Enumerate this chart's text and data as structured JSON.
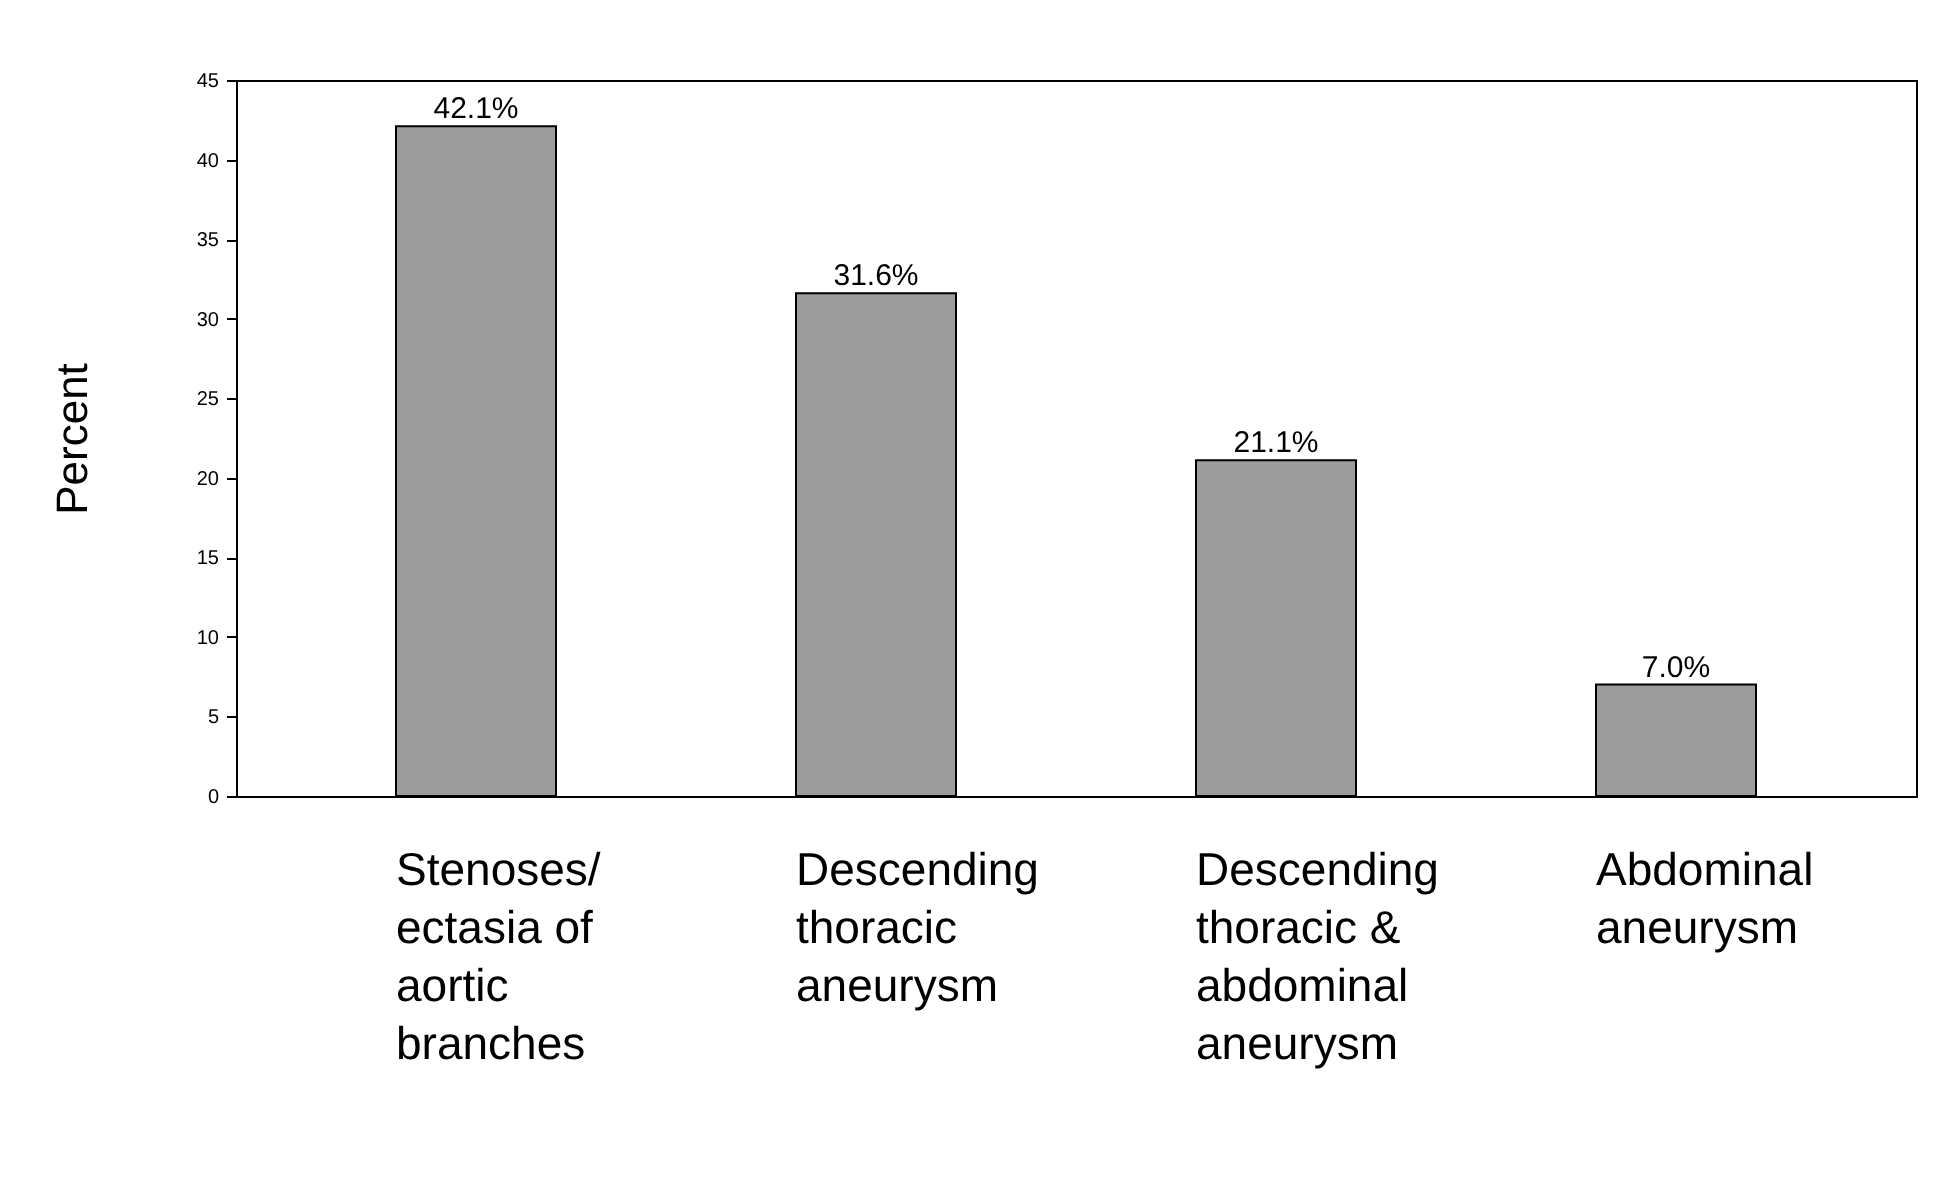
{
  "chart_data": {
    "type": "bar",
    "ylabel": "Percent",
    "categories": [
      "Stenoses/ ectasia of aortic branches",
      "Descending thoracic aneurysm",
      "Descending thoracic & abdominal aneurysm",
      "Abdominal aneurysm"
    ],
    "values": [
      42.1,
      31.6,
      21.1,
      7.0
    ],
    "value_labels": [
      "42.1%",
      "31.6%",
      "21.1%",
      "7.0%"
    ],
    "color": "#9c9c9c",
    "ylim": [
      0,
      45
    ],
    "yticks": [
      0,
      5,
      10,
      15,
      20,
      25,
      30,
      35,
      40,
      45
    ]
  }
}
